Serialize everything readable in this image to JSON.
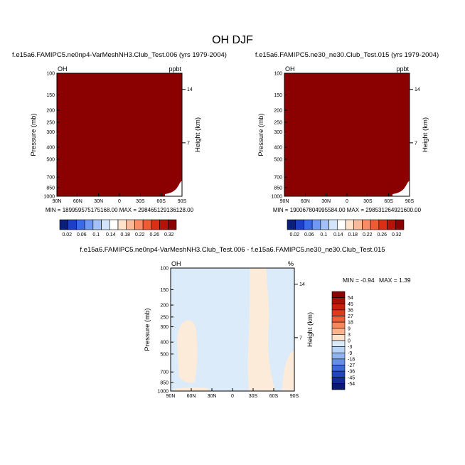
{
  "figure_title": "OH DJF",
  "colors": {
    "dark_red": "#8B0000",
    "pale_blue": "#DCEBFA",
    "pale_peach": "#FDEBD9"
  },
  "chart_data": [
    {
      "type": "heatmap",
      "title": "f.e15a6.FAMIPC5.ne0np4-VarMeshNH3.Club_Test.006 (yrs 1979-2004)",
      "corner_left": "OH",
      "corner_right": "ppbt",
      "xlabel": "",
      "ylabel": "Pressure (mb)",
      "right_label": "Height (km)",
      "x_ticks": [
        "90N",
        "60N",
        "30N",
        "0",
        "30S",
        "60S",
        "90S"
      ],
      "y_ticks": [
        "100",
        "150",
        "200",
        "250",
        "300",
        "400",
        "500",
        "700",
        "850",
        "1000"
      ],
      "right_ticks": [
        "14",
        "7"
      ],
      "ylim": [
        1000,
        100
      ],
      "y_scale": "log",
      "stats": "MIN = 189959575175168.00   MAX = 298465129136128.00",
      "fill": "all values above top contour level (dark red)",
      "colorbar_levels": [
        "0.02",
        "0.06",
        "0.1",
        "0.14",
        "0.18",
        "0.22",
        "0.26",
        "0.32"
      ],
      "colorbar_colors": [
        "#0A1E7A",
        "#1D3FC4",
        "#3B6AE8",
        "#6F98F2",
        "#A3C1F7",
        "#D4E4FB",
        "#FFFFFF",
        "#FDE2CC",
        "#FBB99A",
        "#F88C66",
        "#F25A35",
        "#DC2E15",
        "#B21408",
        "#8B0000"
      ]
    },
    {
      "type": "heatmap",
      "title": "f.e15a6.FAMIPC5.ne30_ne30.Club_Test.015 (yrs 1979-2004)",
      "corner_left": "OH",
      "corner_right": "ppbt",
      "xlabel": "",
      "ylabel": "Pressure (mb)",
      "right_label": "Height (km)",
      "x_ticks": [
        "90N",
        "60N",
        "30N",
        "0",
        "30S",
        "60S",
        "90S"
      ],
      "y_ticks": [
        "100",
        "150",
        "200",
        "250",
        "300",
        "400",
        "500",
        "700",
        "850",
        "1000"
      ],
      "right_ticks": [
        "14",
        "7"
      ],
      "ylim": [
        1000,
        100
      ],
      "y_scale": "log",
      "stats": "MIN = 190067804995584.00   MAX = 298531264921600.00",
      "fill": "all values above top contour level (dark red)",
      "colorbar_levels": [
        "0.02",
        "0.06",
        "0.1",
        "0.14",
        "0.18",
        "0.22",
        "0.26",
        "0.32"
      ],
      "colorbar_colors": [
        "#0A1E7A",
        "#1D3FC4",
        "#3B6AE8",
        "#6F98F2",
        "#A3C1F7",
        "#D4E4FB",
        "#FFFFFF",
        "#FDE2CC",
        "#FBB99A",
        "#F88C66",
        "#F25A35",
        "#DC2E15",
        "#B21408",
        "#8B0000"
      ]
    },
    {
      "type": "heatmap",
      "title": "f.e15a6.FAMIPC5.ne0np4-VarMeshNH3.Club_Test.006 - f.e15a6.FAMIPC5.ne30_ne30.Club_Test.015",
      "corner_left": "OH",
      "corner_right": "%",
      "xlabel": "",
      "ylabel": "Pressure (mb)",
      "right_label": "Height (km)",
      "x_ticks": [
        "90N",
        "60N",
        "30N",
        "0",
        "30S",
        "60S",
        "90S"
      ],
      "y_ticks": [
        "100",
        "150",
        "200",
        "250",
        "300",
        "400",
        "500",
        "700",
        "850",
        "1000"
      ],
      "right_ticks": [
        "14",
        "7"
      ],
      "ylim": [
        1000,
        100
      ],
      "y_scale": "log",
      "stats_min": "MIN = -0.94",
      "stats_max": "MAX =  1.39",
      "colorbar_levels": [
        "54",
        "45",
        "36",
        "27",
        "18",
        "9",
        "3",
        "0",
        "-3",
        "-9",
        "-18",
        "-27",
        "-36",
        "-45",
        "-54"
      ],
      "colorbar_colors": [
        "#8B0000",
        "#A80F05",
        "#C4200E",
        "#DE3A1E",
        "#EE5E38",
        "#F7885E",
        "#FBB38E",
        "#FDE2CC",
        "#DCEBFA",
        "#B8D3F6",
        "#8FB4F0",
        "#6690E6",
        "#3E69D8",
        "#2146BE",
        "#132C96",
        "#0A1A6E"
      ],
      "regions": [
        "values between 0 and 3 (peach)",
        "values between -3 and 0 (pale blue)"
      ]
    }
  ]
}
